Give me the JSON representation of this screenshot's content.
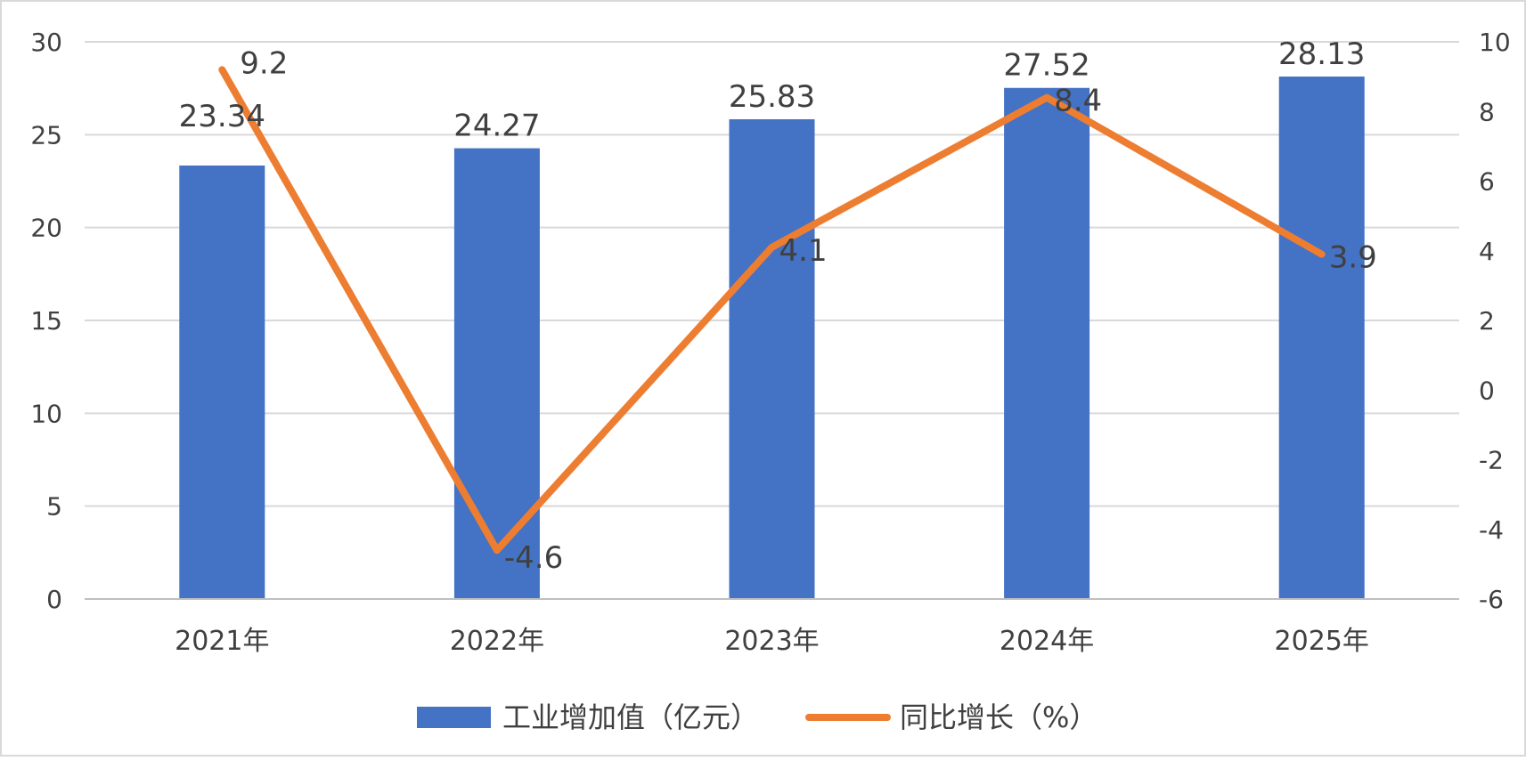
{
  "chart_data": {
    "type": "bar",
    "categories": [
      "2021年",
      "2022年",
      "2023年",
      "2024年",
      "2025年"
    ],
    "series": [
      {
        "name": "工业增加值（亿元）",
        "type": "bar",
        "axis": "left",
        "color": "#4472C4",
        "values": [
          23.34,
          24.27,
          25.83,
          27.52,
          28.13
        ]
      },
      {
        "name": "同比增长（%）",
        "type": "line",
        "axis": "right",
        "color": "#ED7D31",
        "values": [
          9.2,
          -4.6,
          4.1,
          8.4,
          3.9
        ]
      }
    ],
    "y_left": {
      "min": 0,
      "max": 30,
      "ticks": [
        0,
        5,
        10,
        15,
        20,
        25,
        30
      ]
    },
    "y_right": {
      "min": -6,
      "max": 10,
      "ticks": [
        -6,
        -4,
        -2,
        0,
        2,
        4,
        6,
        8,
        10
      ]
    },
    "grid": true,
    "legend_position": "bottom",
    "border_color": "#D9D9D9",
    "grid_color": "#D9D9D9",
    "axis_line_color": "#BFBFBF",
    "text_color": "#404040"
  }
}
